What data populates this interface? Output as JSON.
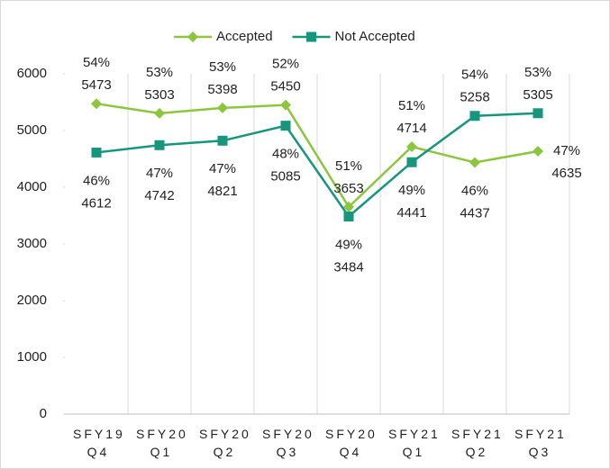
{
  "chart_data": {
    "type": "line",
    "categories": [
      "SFY19 Q4",
      "SFY20 Q1",
      "SFY20 Q2",
      "SFY20 Q3",
      "SFY20 Q4",
      "SFY21 Q1",
      "SFY21 Q2",
      "SFY21 Q3"
    ],
    "series": [
      {
        "name": "Accepted",
        "color": "#8cc63e",
        "marker": "diamond",
        "values": [
          5473,
          5303,
          5398,
          5450,
          3653,
          4714,
          4437,
          4635
        ],
        "share_labels": [
          "54%",
          "53%",
          "53%",
          "52%",
          "51%",
          "51%",
          "46%",
          "47%"
        ]
      },
      {
        "name": "Not Accepted",
        "color": "#16967c",
        "marker": "square",
        "values": [
          4612,
          4742,
          4821,
          5085,
          3484,
          4441,
          5258,
          5305
        ],
        "share_labels": [
          "46%",
          "47%",
          "47%",
          "48%",
          "49%",
          "49%",
          "54%",
          "53%"
        ]
      }
    ],
    "ylim": [
      0,
      6000
    ],
    "yticks": [
      0,
      1000,
      2000,
      3000,
      4000,
      5000,
      6000
    ],
    "legend": "top"
  }
}
